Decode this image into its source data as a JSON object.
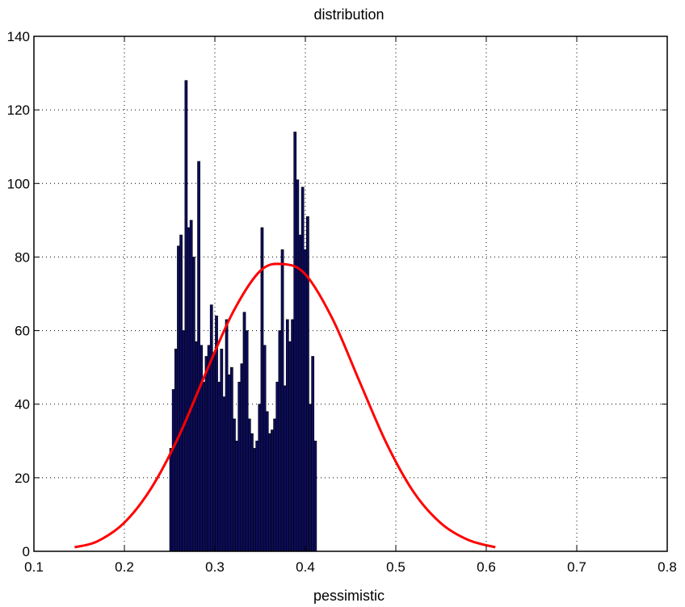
{
  "chart_data": {
    "type": "bar",
    "title": "distribution",
    "xlabel": "pessimistic",
    "ylabel": "",
    "xlim": [
      0.1,
      0.8
    ],
    "ylim": [
      0,
      140
    ],
    "xticks": [
      0.1,
      0.2,
      0.3,
      0.4,
      0.5,
      0.6,
      0.7,
      0.8
    ],
    "yticks": [
      0,
      20,
      40,
      60,
      80,
      100,
      120,
      140
    ],
    "grid": true,
    "bar_color": "#0c0c5c",
    "curve_color": "#ff0000",
    "histogram": {
      "bin_start": 0.25,
      "bin_width": 0.0028,
      "counts": [
        28,
        44,
        55,
        83,
        86,
        60,
        128,
        88,
        90,
        80,
        57,
        106,
        56,
        46,
        53,
        56,
        67,
        54,
        64,
        46,
        55,
        42,
        63,
        48,
        50,
        36,
        30,
        46,
        51,
        65,
        60,
        36,
        32,
        28,
        30,
        40,
        88,
        56,
        38,
        32,
        33,
        36,
        46,
        60,
        82,
        45,
        63,
        57,
        63,
        114,
        101,
        86,
        99,
        82,
        91,
        40,
        53,
        30
      ]
    },
    "curve": {
      "x": [
        0.145,
        0.17,
        0.2,
        0.23,
        0.26,
        0.29,
        0.32,
        0.35,
        0.375,
        0.4,
        0.43,
        0.46,
        0.49,
        0.52,
        0.55,
        0.58,
        0.61
      ],
      "y": [
        1.1,
        2.7,
        7.8,
        17.3,
        31.2,
        48.5,
        65.0,
        76.2,
        78.1,
        75.3,
        63.2,
        46.1,
        29.2,
        16.0,
        7.6,
        3.1,
        1.1
      ]
    }
  }
}
